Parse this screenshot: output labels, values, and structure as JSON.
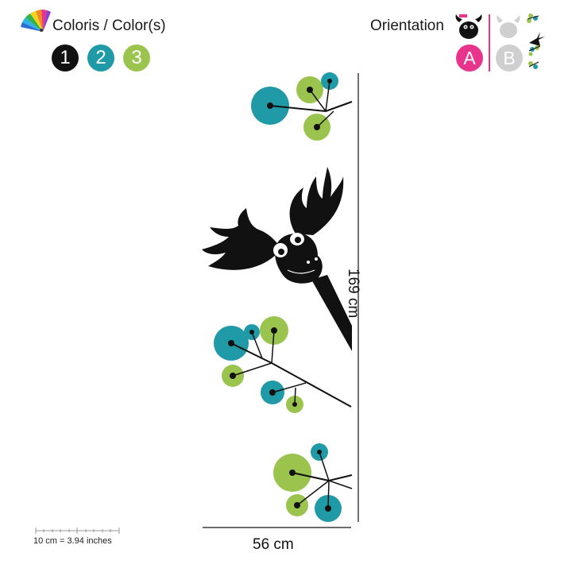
{
  "header": {
    "colors_title": "Coloris / Color(s)",
    "orientation_title": "Orientation"
  },
  "swatches": [
    {
      "label": "1",
      "color": "#111111"
    },
    {
      "label": "2",
      "color": "#1f9aa6"
    },
    {
      "label": "3",
      "color": "#9bc44f"
    }
  ],
  "orientation": {
    "options": [
      {
        "label": "A",
        "color": "#e8348c",
        "selected": true
      },
      {
        "label": "B",
        "color": "#cfcfcf",
        "selected": false
      }
    ],
    "divider_color": "#e8348c"
  },
  "dimensions": {
    "height": "169 cm",
    "width": "56 cm",
    "scale": "10 cm = 3.94 inches"
  },
  "icons": {
    "palette": "color-fan-icon",
    "preview_a": "moose-preview-icon",
    "preview_b": "moose-tree-preview-icon"
  },
  "colors": {
    "black": "#111111",
    "teal": "#1f9aa6",
    "green": "#9bc44f",
    "pink": "#e8348c",
    "grey": "#cfcfcf"
  }
}
